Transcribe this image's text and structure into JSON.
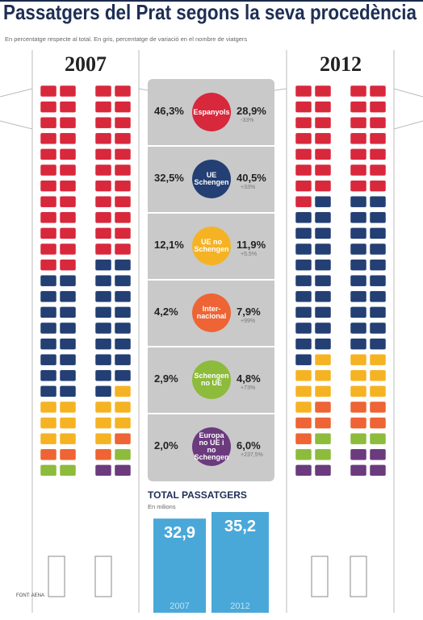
{
  "title": "Passatgers del Prat segons la seva procedència",
  "subtitle": "En percentatge respecte al total. En gris, percentatge de variació en el nombre de viatgers",
  "chart_data": {
    "type": "seats",
    "categories": [
      "2007",
      "2012"
    ],
    "series": [
      {
        "name": "Espanyols",
        "color": "#d8283c",
        "values": [
          46.3,
          28.9
        ],
        "value_labels": [
          "46,3%",
          "28,9%"
        ],
        "change": "-33%"
      },
      {
        "name": "UE Schengen",
        "color": "#233f73",
        "values": [
          32.5,
          40.5
        ],
        "value_labels": [
          "32,5%",
          "40,5%"
        ],
        "change": "+33%"
      },
      {
        "name": "UE no Schengen",
        "color": "#f5b324",
        "values": [
          12.1,
          11.9
        ],
        "value_labels": [
          "12,1%",
          "11,9%"
        ],
        "change": "+5,5%"
      },
      {
        "name": "Inter-nacional",
        "color": "#ee6434",
        "values": [
          4.2,
          7.9
        ],
        "value_labels": [
          "4,2%",
          "7,9%"
        ],
        "change": "+99%"
      },
      {
        "name": "Schengen no UE",
        "color": "#8dbb3c",
        "values": [
          2.9,
          4.8
        ],
        "value_labels": [
          "2,9%",
          "4,8%"
        ],
        "change": "+73%"
      },
      {
        "name": "Europa no UE i no Schengen",
        "color": "#6b3b7e",
        "values": [
          2.0,
          6.0
        ],
        "value_labels": [
          "2,0%",
          "6,0%"
        ],
        "change": "+237,5%"
      }
    ]
  },
  "totals": {
    "title": "TOTAL PASSATGERS",
    "subtitle": "En milions",
    "categories": [
      "2007",
      "2012"
    ],
    "values": [
      32.9,
      35.2
    ],
    "value_labels": [
      "32,9",
      "35,2"
    ],
    "color": "#4aa8d8"
  },
  "source": "FONT: AENA"
}
